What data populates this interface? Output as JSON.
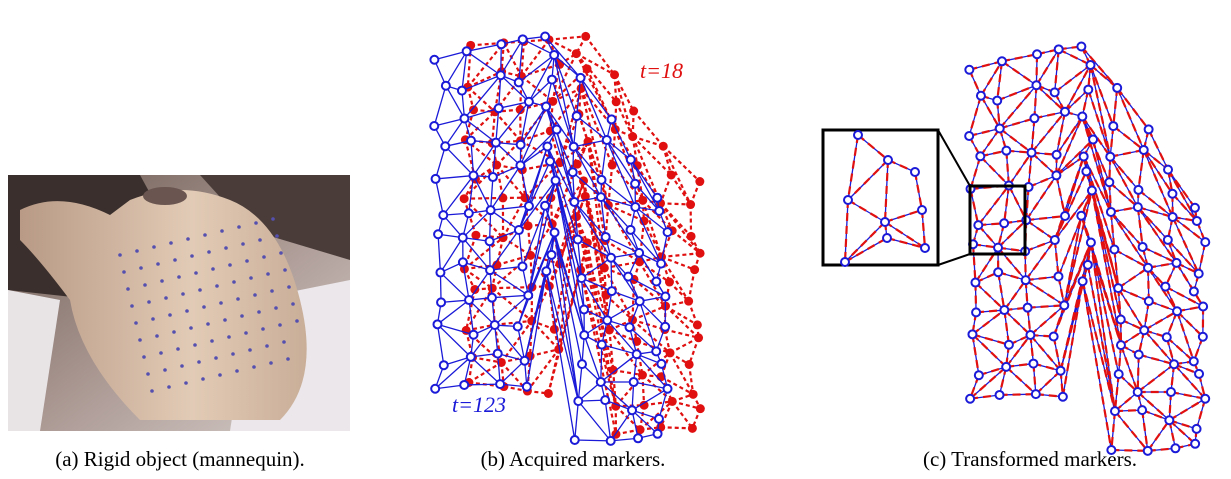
{
  "figure": {
    "panels": [
      {
        "caption": "(a) Rigid object (mannequin)."
      },
      {
        "caption": "(b) Acquired markers.",
        "annotations": [
          "t=18",
          "t=123"
        ]
      },
      {
        "caption": "(c) Transformed markers."
      }
    ]
  }
}
